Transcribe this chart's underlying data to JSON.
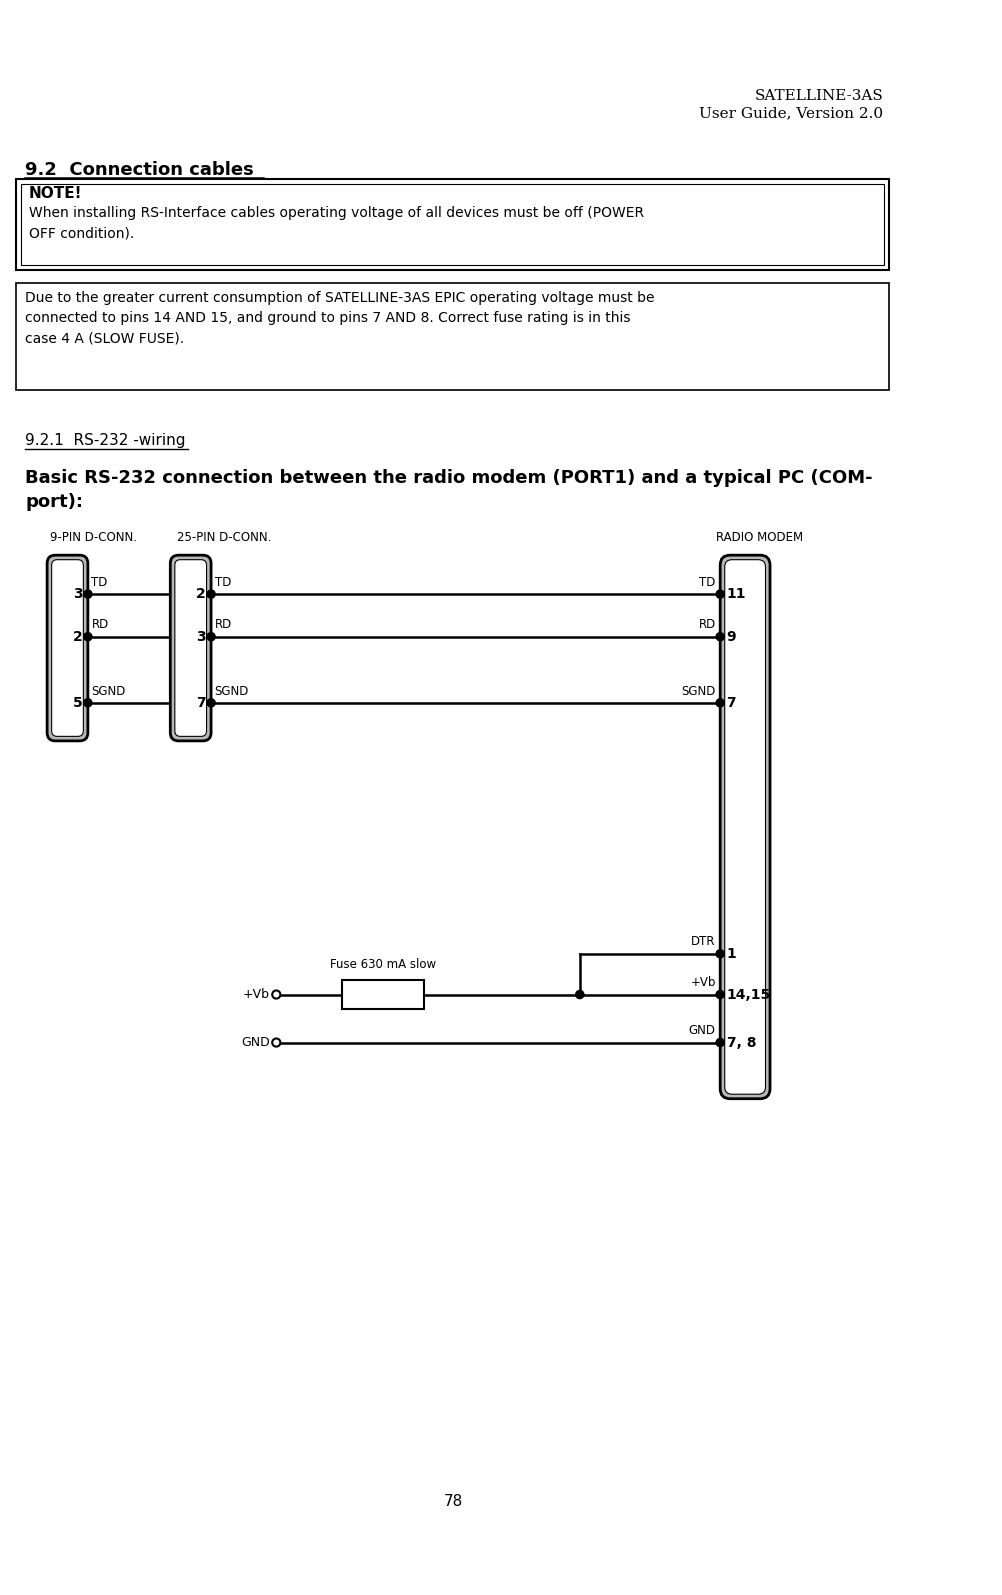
{
  "header_line1": "SATELLINE-3AS",
  "header_line2": "User Guide, Version 2.0",
  "section_title": "9.2  Connection cables",
  "note_title": "NOTE!",
  "note_text": "When installing RS-Interface cables operating voltage of all devices must be off (POWER\nOFF condition).",
  "note2_text": "Due to the greater current consumption of SATELLINE-3AS EPIC operating voltage must be\nconnected to pins 14 AND 15, and ground to pins 7 AND 8. Correct fuse rating is in this\ncase 4 A (SLOW FUSE).",
  "subsection_title": "9.2.1  RS-232 -wiring",
  "body_text_bold": "Basic RS-232 connection between the radio modem (PORT1) and a typical PC (COM-\nport):",
  "label_9pin": "9-PIN D-CONN.",
  "label_25pin": "25-PIN D-CONN.",
  "label_radio": "RADIO MODEM",
  "page_number": "78",
  "bg_color": "#ffffff",
  "text_color": "#000000",
  "connector_fill": "#c0c0c0",
  "connector_stroke": "#000000",
  "line_color": "#000000"
}
